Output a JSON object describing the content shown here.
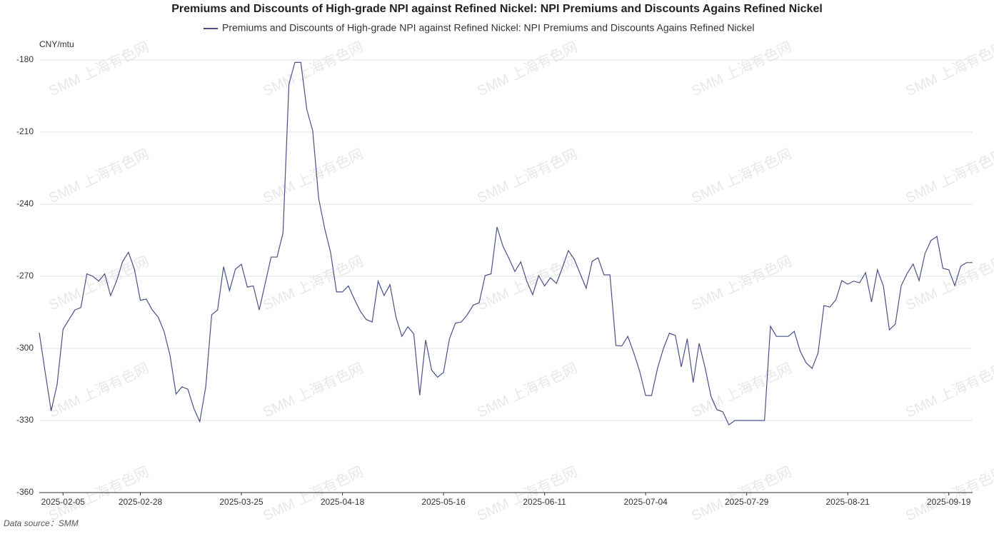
{
  "chart_data": {
    "type": "line",
    "title": "Premiums and Discounts of High-grade NPI against Refined Nickel: NPI Premiums and Discounts Agains Refined Nickel",
    "y_unit": "CNY/mtu",
    "source": "Data source：SMM",
    "watermark": "SMM 上海有色网",
    "categories": [
      null,
      null,
      null,
      null,
      "2025-02-05",
      null,
      null,
      null,
      null,
      null,
      null,
      null,
      null,
      null,
      null,
      null,
      null,
      "2025-02-28",
      null,
      null,
      null,
      null,
      null,
      null,
      null,
      null,
      null,
      null,
      null,
      null,
      null,
      null,
      null,
      null,
      "2025-03-25",
      null,
      null,
      null,
      null,
      null,
      null,
      null,
      null,
      null,
      null,
      null,
      null,
      null,
      null,
      null,
      null,
      "2025-04-18",
      null,
      null,
      null,
      null,
      null,
      null,
      null,
      null,
      null,
      null,
      null,
      null,
      null,
      null,
      null,
      null,
      "2025-05-16",
      null,
      null,
      null,
      null,
      null,
      null,
      null,
      null,
      null,
      null,
      null,
      null,
      null,
      null,
      null,
      null,
      "2025-06-11",
      null,
      null,
      null,
      null,
      null,
      null,
      null,
      null,
      null,
      null,
      null,
      null,
      null,
      null,
      null,
      null,
      "2025-07-04",
      null,
      null,
      null,
      null,
      null,
      null,
      null,
      null,
      null,
      null,
      null,
      null,
      null,
      null,
      null,
      null,
      "2025-07-29",
      null,
      null,
      null,
      null,
      null,
      null,
      null,
      null,
      null,
      null,
      null,
      null,
      null,
      null,
      null,
      null,
      "2025-08-21",
      null,
      null,
      null,
      null,
      null,
      null,
      null,
      null,
      null,
      null,
      null,
      null,
      null,
      null,
      null,
      null,
      "2025-09-19",
      null,
      null,
      null,
      null
    ],
    "series": [
      {
        "name": "Premiums and Discounts of High-grade NPI against Refined Nickel: NPI Premiums and Discounts Agains Refined Nickel",
        "color": "#4a5286",
        "values": [
          -293.5,
          -310,
          -326,
          -315,
          -292,
          -288,
          -284,
          -283,
          -269,
          -270,
          -272,
          -269,
          -278,
          -272,
          -264,
          -260,
          -267,
          -280,
          -279.5,
          -284,
          -287,
          -293,
          -303,
          -319,
          -316,
          -317,
          -325,
          -330.5,
          -316,
          -286,
          -284,
          -266,
          -276,
          -267,
          -265,
          -274.5,
          -274,
          -284,
          -273,
          -262,
          -262,
          -252,
          -190,
          -181,
          -181,
          -200.5,
          -209.5,
          -237.6,
          -250,
          -260,
          -276.5,
          -276.5,
          -274,
          -279.5,
          -284.5,
          -288,
          -289,
          -272,
          -278,
          -273.5,
          -287,
          -295,
          -291,
          -294,
          -319.5,
          -296.5,
          -309,
          -312,
          -310,
          -296,
          -289.5,
          -289,
          -286,
          -282,
          -281,
          -269.7,
          -269,
          -249.5,
          -257.5,
          -262.5,
          -268,
          -264,
          -272,
          -277.7,
          -269.7,
          -274,
          -270.6,
          -273,
          -266.4,
          -259.3,
          -263,
          -269,
          -275,
          -263.8,
          -262.3,
          -269.4,
          -269.4,
          -298.8,
          -299,
          -295,
          -301.8,
          -309.5,
          -319.6,
          -319.6,
          -308.3,
          -300,
          -293.7,
          -294.6,
          -307.7,
          -296,
          -314.2,
          -297.9,
          -308,
          -320,
          -325.5,
          -326.4,
          -331.8,
          -330,
          -330,
          -330,
          -330,
          -330,
          -330,
          -290.8,
          -295,
          -295,
          -295,
          -292.9,
          -301.2,
          -306,
          -308.3,
          -302,
          -282.2,
          -282.8,
          -279.8,
          -271.8,
          -273.3,
          -272,
          -272.7,
          -268.5,
          -280.7,
          -267.3,
          -274.1,
          -292.3,
          -289.9,
          -273.9,
          -268.8,
          -264.9,
          -271.8,
          -260.5,
          -255.1,
          -253.4,
          -266.7,
          -267.3,
          -273.9,
          -265.8,
          -264.3,
          -264.3
        ]
      }
    ],
    "ylim": [
      -360,
      -180
    ],
    "yticks": [
      -360,
      -330,
      -300,
      -270,
      -240,
      -210,
      -180
    ],
    "grid": true
  }
}
